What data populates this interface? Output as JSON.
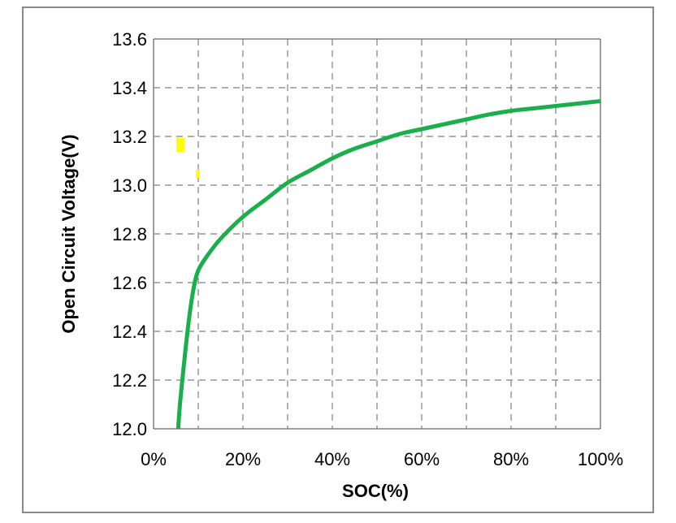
{
  "chart_data": {
    "type": "line",
    "title": "",
    "xlabel": "SOC(%)",
    "ylabel": "Open Circuit Voltage(V)",
    "xlim": [
      0,
      100
    ],
    "ylim": [
      12.0,
      13.6
    ],
    "x_ticks": [
      0,
      20,
      40,
      60,
      80,
      100
    ],
    "x_tick_labels": [
      "0%",
      "20%",
      "40%",
      "60%",
      "80%",
      "100%"
    ],
    "y_ticks": [
      12.0,
      12.2,
      12.4,
      12.6,
      12.8,
      13.0,
      13.2,
      13.4,
      13.6
    ],
    "y_tick_labels": [
      "12.0",
      "12.2",
      "12.4",
      "12.6",
      "12.8",
      "13.0",
      "13.2",
      "13.4",
      "13.6"
    ],
    "grid": true,
    "legend": "none",
    "series": [
      {
        "color": "#1aaf4b",
        "x": [
          5.5,
          6.0,
          7.0,
          8.0,
          9.0,
          10.0,
          12.0,
          15.0,
          20.0,
          25.0,
          30.0,
          35.0,
          40.0,
          45.0,
          50.0,
          55.0,
          60.0,
          65.0,
          70.0,
          75.0,
          80.0,
          85.0,
          90.0,
          95.0,
          100.0
        ],
        "y": [
          12.0,
          12.12,
          12.3,
          12.46,
          12.58,
          12.65,
          12.71,
          12.78,
          12.87,
          12.94,
          13.01,
          13.06,
          13.11,
          13.15,
          13.18,
          13.21,
          13.23,
          13.25,
          13.27,
          13.29,
          13.305,
          13.315,
          13.325,
          13.335,
          13.345
        ]
      }
    ]
  },
  "colors": {
    "line": "#1aaf4b",
    "grid": "#7f7f7f",
    "frame": "#8a8a8a",
    "highlight": "#ffff00"
  }
}
